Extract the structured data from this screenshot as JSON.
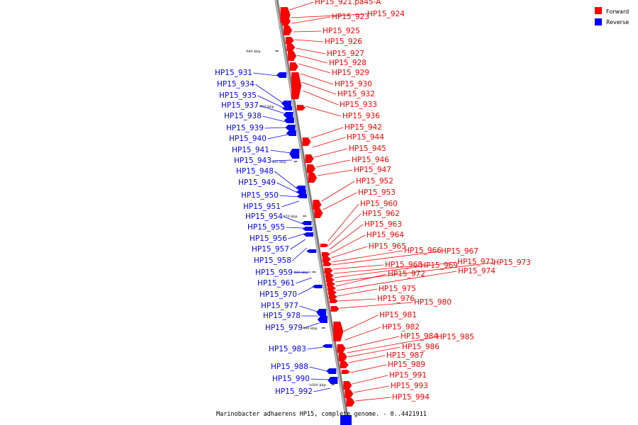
{
  "colors": {
    "forward": "#ff0000",
    "reverse": "#0000ff",
    "axis": "#999999"
  },
  "legend": [
    {
      "label": "Forward",
      "strand": "forward"
    },
    {
      "label": "Reverse",
      "strand": "reverse"
    }
  ],
  "caption": "Marinobacter adhaerens HP15, complete genome. - 0..4421911",
  "scale_ticks": [
    "940 kbp",
    "950 kbp",
    "960 kbp",
    "970 kbp",
    "980 kbp",
    "990 kbp",
    "1000 kbp"
  ],
  "genes_forward": [
    "HP15_921.pa45-A",
    "HP15_923",
    "HP15_924",
    "HP15_925",
    "HP15_926",
    "HP15_927",
    "HP15_928",
    "HP15_929",
    "HP15_930",
    "HP15_932",
    "HP15_933",
    "HP15_936",
    "HP15_942",
    "HP15_944",
    "HP15_945",
    "HP15_946",
    "HP15_947",
    "HP15_952",
    "HP15_953",
    "HP15_960",
    "HP15_962",
    "HP15_963",
    "HP15_964",
    "HP15_965",
    "HP15_966",
    "HP15_967",
    "HP15_968",
    "HP15_969",
    "HP15_971",
    "HP15_973",
    "HP15_972",
    "HP15_974",
    "HP15_975",
    "HP15_976",
    "HP15_980",
    "HP15_981",
    "HP15_982",
    "HP15_984",
    "HP15_985",
    "HP15_986",
    "HP15_987",
    "HP15_989",
    "HP15_991",
    "HP15_993",
    "HP15_994"
  ],
  "genes_reverse": [
    "HP15_931",
    "HP15_934",
    "HP15_935",
    "HP15_937",
    "HP15_938",
    "HP15_939",
    "HP15_940",
    "HP15_941",
    "HP15_943",
    "HP15_948",
    "HP15_949",
    "HP15_950",
    "HP15_951",
    "HP15_954",
    "HP15_955",
    "HP15_956",
    "HP15_957",
    "HP15_958",
    "HP15_959",
    "HP15_961",
    "HP15_970",
    "HP15_977",
    "HP15_978",
    "HP15_979",
    "HP15_983",
    "HP15_988",
    "HP15_990",
    "HP15_992"
  ]
}
